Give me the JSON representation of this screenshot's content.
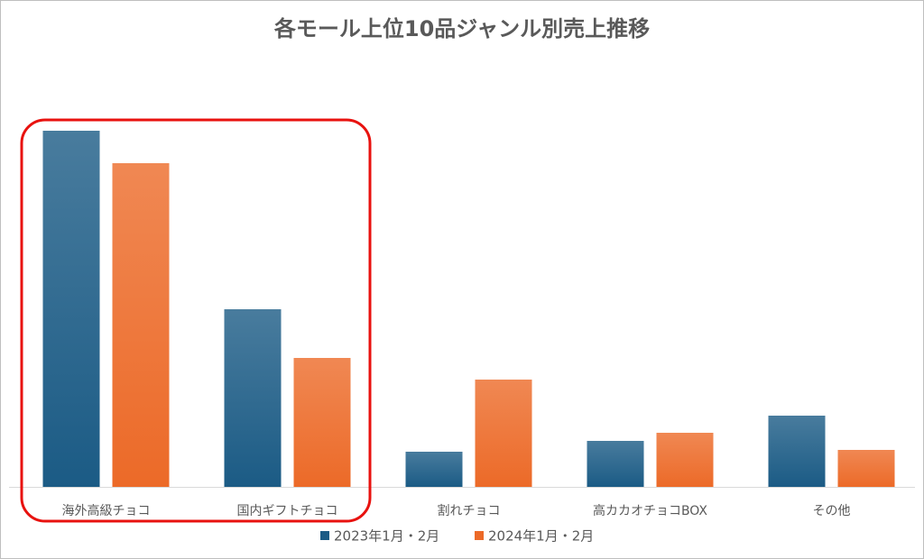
{
  "chart_data": {
    "type": "bar",
    "title": "各モール上位10品ジャンル別売上推移",
    "categories": [
      "海外高級チョコ",
      "国内ギフトチョコ",
      "割れチョコ",
      "高カカオチョコBOX",
      "その他"
    ],
    "series": [
      {
        "name": "2023年1月・2月",
        "color": "#1b5b85",
        "values": [
          395,
          197,
          39,
          51,
          79
        ]
      },
      {
        "name": "2024年1月・2月",
        "color": "#ec6a28",
        "values": [
          359,
          143,
          119,
          60,
          41
        ]
      }
    ],
    "legend": "bottom"
  }
}
